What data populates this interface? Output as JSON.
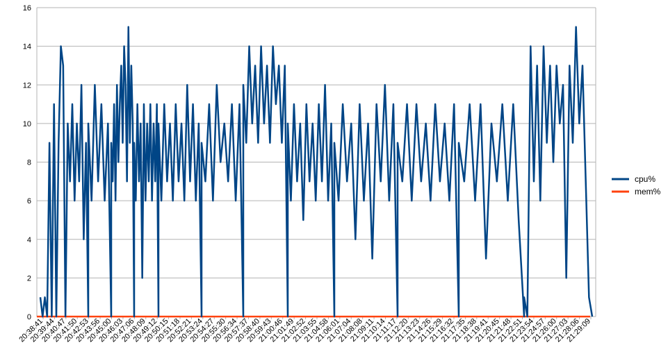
{
  "chart_data": {
    "type": "line",
    "title": "",
    "xlabel": "",
    "ylabel": "",
    "ylim": [
      0,
      16
    ],
    "yticks": [
      0,
      2,
      4,
      6,
      8,
      10,
      12,
      14,
      16
    ],
    "grid": "horizontal",
    "legend_position": "right",
    "xtick_labels": [
      "20:38:41",
      "20:39:44",
      "20:40:47",
      "20:41:50",
      "20:42:53",
      "20:43:56",
      "20:45:00",
      "20:46:03",
      "20:47:06",
      "20:48:09",
      "20:49:12",
      "20:50:15",
      "20:51:18",
      "20:52:21",
      "20:53:24",
      "20:54:27",
      "20:55:30",
      "20:56:34",
      "20:57:37",
      "20:58:40",
      "20:59:43",
      "21:00:46",
      "21:01:49",
      "21:02:52",
      "21:03:55",
      "21:04:58",
      "21:06:01",
      "21:07:04",
      "21:08:08",
      "21:09:11",
      "21:10:14",
      "21:11:17",
      "21:12:20",
      "21:13:23",
      "21:14:26",
      "21:15:29",
      "21:16:32",
      "21:17:35",
      "21:18:38",
      "21:19:41",
      "21:20:45",
      "21:21:48",
      "21:22:51",
      "21:23:54",
      "21:24:57",
      "21:26:00",
      "21:27:03",
      "21:28:06",
      "21:29:09"
    ],
    "series": [
      {
        "name": "cpu%",
        "color": "#004586",
        "segment_values": [
          [
            1,
            0,
            1,
            0,
            9,
            0,
            11,
            0,
            9,
            14,
            13,
            0,
            10,
            7,
            11,
            6,
            10,
            7,
            12,
            4,
            9,
            0
          ],
          [
            10,
            6,
            12,
            7,
            11,
            6,
            10,
            0
          ],
          [
            9,
            7,
            11,
            6,
            12,
            8,
            11,
            13,
            9,
            14,
            12,
            7,
            15,
            9,
            13,
            10,
            0
          ],
          [
            9,
            6,
            11,
            7,
            10,
            2,
            11,
            6,
            10,
            7,
            11,
            6,
            10,
            7,
            11,
            0
          ],
          [
            10,
            6,
            11,
            7,
            10,
            6,
            11,
            7,
            10,
            6,
            12,
            7,
            11,
            6,
            10,
            0
          ],
          [
            9,
            7,
            11,
            6,
            12,
            8,
            10,
            7,
            11,
            6,
            11,
            0
          ],
          [
            12,
            9,
            14,
            10,
            13,
            9,
            14,
            10,
            13,
            9,
            14,
            11,
            13,
            9,
            13,
            0
          ],
          [
            10,
            6,
            11,
            7,
            10,
            5,
            11,
            7,
            10,
            6,
            11,
            7,
            12,
            6,
            10,
            0
          ],
          [
            9,
            6,
            11,
            7,
            10,
            4,
            11,
            6,
            10,
            3,
            11,
            7,
            12,
            6,
            11,
            0
          ],
          [
            9,
            7,
            11,
            6,
            11,
            7,
            10,
            6,
            11,
            7,
            10,
            6,
            11,
            0
          ],
          [
            9,
            7,
            11,
            6,
            11,
            3,
            10,
            7,
            11,
            6,
            11,
            5,
            0
          ],
          [
            1,
            0,
            14,
            7,
            13,
            6,
            14,
            9,
            13,
            8,
            13,
            10,
            12,
            2,
            13,
            9,
            15,
            10,
            13,
            7,
            1,
            0
          ]
        ]
      },
      {
        "name": "mem%",
        "color": "#ff420e",
        "values": [
          0,
          0
        ]
      }
    ]
  }
}
